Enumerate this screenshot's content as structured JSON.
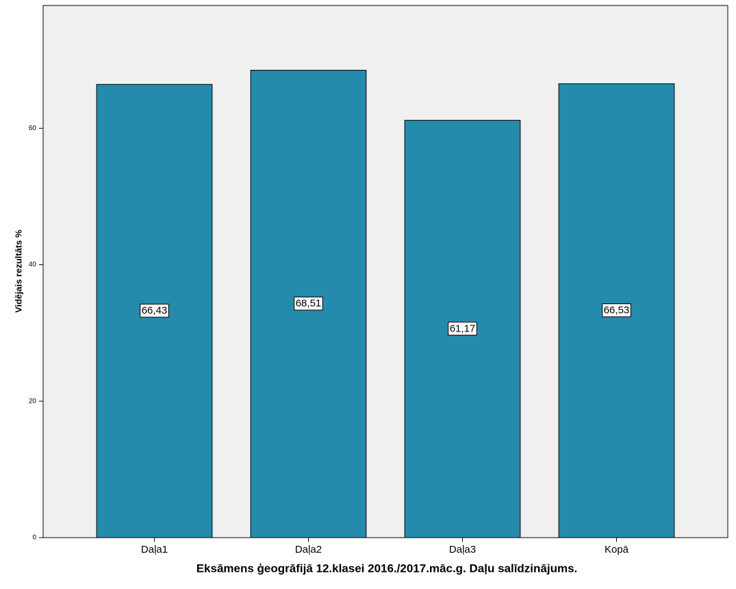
{
  "chart_data": {
    "type": "bar",
    "x_label": "Eksāmens ģeogrāfijā 12.klasei 2016./2017.māc.g. Daļu salīdzinājums.",
    "y_label": "Vidējais rezultāts %",
    "categories": [
      "Daļa1",
      "Daļa2",
      "Daļa3",
      "Kopā"
    ],
    "values": [
      66.43,
      68.51,
      61.17,
      66.53
    ],
    "value_labels": [
      "66,43",
      "68,51",
      "61,17",
      "66,53"
    ],
    "color": "#258bac",
    "ylim": [
      0,
      78
    ],
    "yticks": [
      0,
      20,
      40,
      60
    ],
    "grid": false
  }
}
